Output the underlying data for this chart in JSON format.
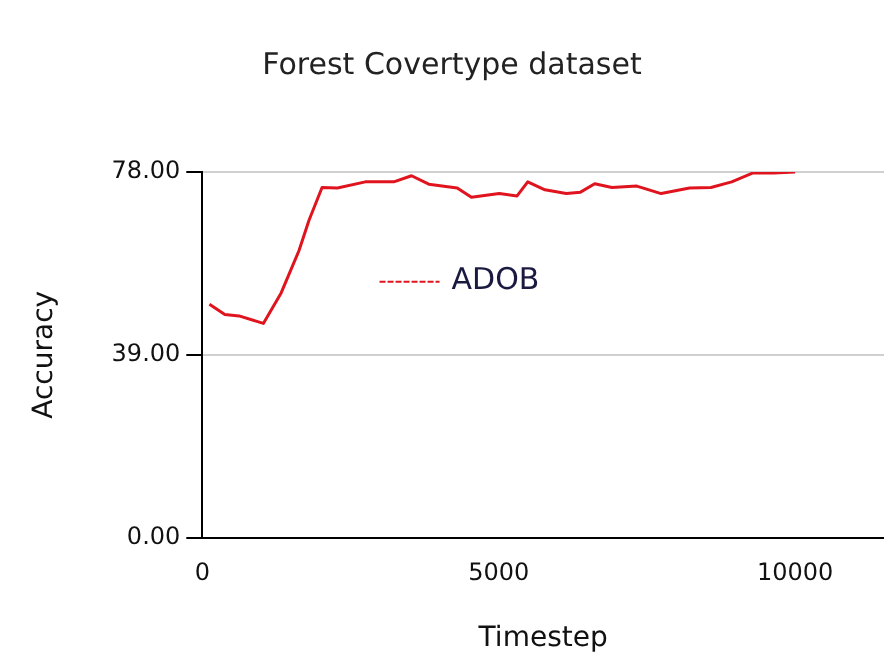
{
  "chart_data": {
    "type": "line",
    "title": "Forest Covertype dataset",
    "xlabel": "Timestep",
    "ylabel": "Accuracy",
    "xlim": [
      0,
      11500
    ],
    "xticks": [
      0,
      5000,
      10000
    ],
    "ylim": [
      0,
      78
    ],
    "yticks": [
      {
        "value": 0,
        "label": "0.00"
      },
      {
        "value": 39,
        "label": "39.00"
      },
      {
        "value": 78,
        "label": "78.00"
      }
    ],
    "grid": "y",
    "legend": "top",
    "marker": "none",
    "line_style": "solid",
    "series": [
      {
        "name": "ADOB",
        "color": "#e0141e",
        "x": [
          120,
          380,
          620,
          1030,
          1330,
          1630,
          1800,
          2020,
          2280,
          2750,
          3230,
          3530,
          3820,
          4300,
          4540,
          5010,
          5310,
          5490,
          5780,
          6140,
          6380,
          6620,
          6910,
          7330,
          7740,
          8220,
          8580,
          8930,
          9290,
          9640,
          10000
        ],
        "values": [
          49.8,
          47.6,
          47.3,
          45.7,
          52.2,
          61.2,
          67.7,
          74.7,
          74.6,
          75.9,
          75.9,
          77.2,
          75.4,
          74.6,
          72.6,
          73.4,
          72.9,
          75.9,
          74.2,
          73.4,
          73.7,
          75.5,
          74.7,
          75.0,
          73.4,
          74.6,
          74.7,
          75.9,
          77.8,
          77.8,
          78
        ]
      }
    ]
  }
}
